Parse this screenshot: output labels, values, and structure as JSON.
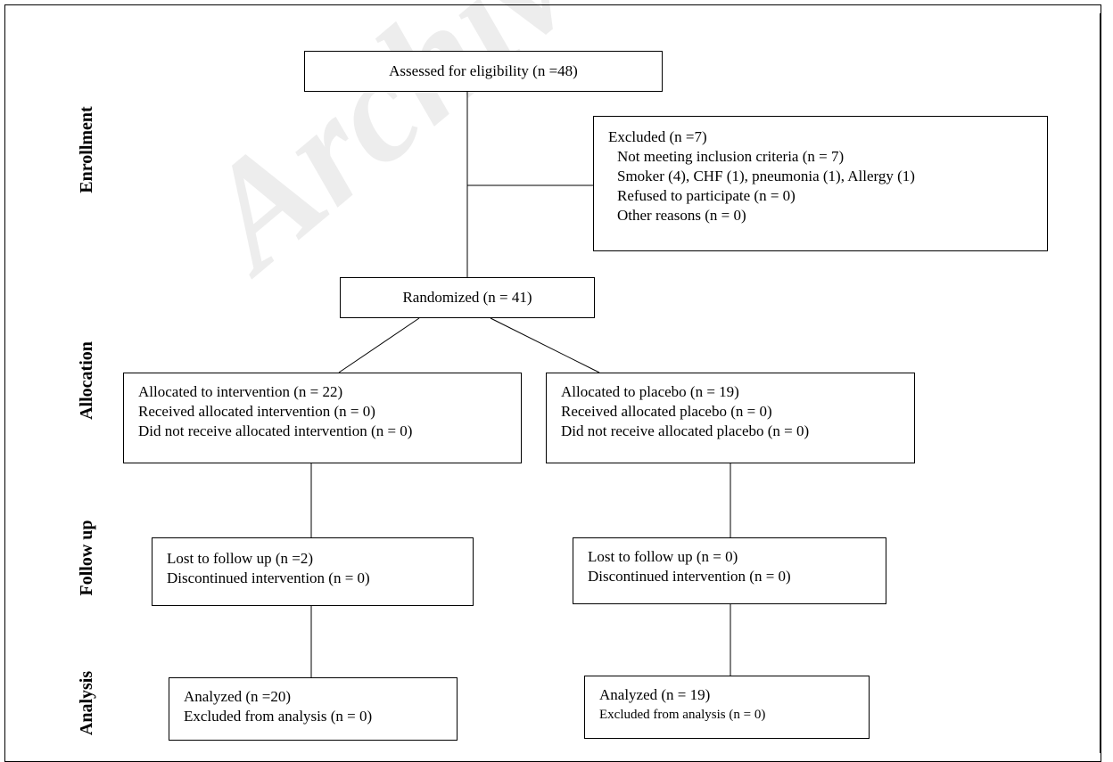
{
  "watermark": "Archive of",
  "stages": {
    "enrollment": "Enrollment",
    "allocation": "Allocation",
    "follow_up": "Follow up",
    "analysis": "Analysis"
  },
  "boxes": {
    "assessed": [
      "Assessed for eligibility (n =48)"
    ],
    "excluded": [
      "Excluded (n =7)",
      "Not meeting inclusion criteria (n = 7)",
      "Smoker (4), CHF (1), pneumonia (1), Allergy (1)",
      "Refused to participate (n = 0)",
      "Other reasons (n = 0)"
    ],
    "randomized": [
      "Randomized (n = 41)"
    ],
    "allocated_intervention": [
      "Allocated to intervention (n = 22)",
      "Received allocated intervention (n = 0)",
      "Did not receive allocated intervention (n = 0)"
    ],
    "allocated_placebo": [
      "Allocated to placebo (n = 19)",
      "Received allocated placebo (n = 0)",
      "Did not receive allocated placebo (n = 0)"
    ],
    "followup_intervention": [
      "Lost to follow up (n =2)",
      "Discontinued intervention (n = 0)"
    ],
    "followup_placebo": [
      "Lost to follow up (n = 0)",
      "Discontinued intervention (n = 0)"
    ],
    "analysis_intervention": [
      "Analyzed (n =20)",
      "Excluded from analysis (n = 0)"
    ],
    "analysis_placebo": [
      "Analyzed (n = 19)",
      "Excluded from analysis (n = 0)"
    ]
  }
}
